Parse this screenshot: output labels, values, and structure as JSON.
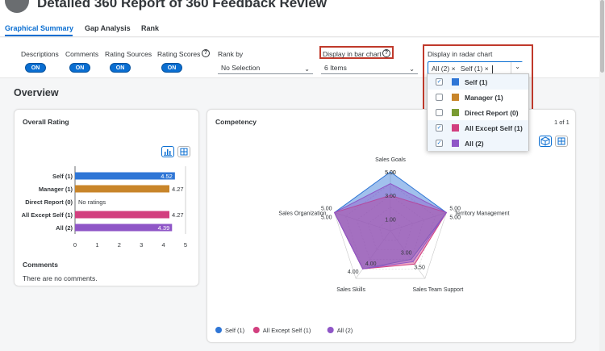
{
  "page": {
    "title": "Detailed 360 Report of 360 Feedback Review"
  },
  "tabs": [
    {
      "label": "Graphical Summary",
      "active": true
    },
    {
      "label": "Gap Analysis",
      "active": false
    },
    {
      "label": "Rank",
      "active": false
    }
  ],
  "filters": {
    "descriptions": {
      "label": "Descriptions",
      "state": "ON"
    },
    "comments": {
      "label": "Comments",
      "state": "ON"
    },
    "rating_sources": {
      "label": "Rating Sources",
      "state": "ON"
    },
    "rating_scores": {
      "label": "Rating Scores",
      "state": "ON",
      "info": "?"
    },
    "rank_by": {
      "label": "Rank by",
      "value": "No Selection"
    },
    "bar_chart": {
      "label": "Display in bar chart",
      "info": "?",
      "value": "6 Items"
    },
    "radar_chart": {
      "label": "Display in radar chart",
      "tokens": [
        "All (2)",
        "Self (1)"
      ],
      "token_close": "×"
    }
  },
  "radar_dropdown": {
    "items": [
      {
        "label": "Self (1)",
        "checked": true,
        "color": "#2f76d6"
      },
      {
        "label": "Manager (1)",
        "checked": false,
        "color": "#c8852a"
      },
      {
        "label": "Direct Report (0)",
        "checked": false,
        "color": "#7a9b32"
      },
      {
        "label": "All Except Self (1)",
        "checked": true,
        "color": "#d23f7f"
      },
      {
        "label": "All (2)",
        "checked": true,
        "color": "#8f56c7"
      }
    ],
    "check_mark": "✓"
  },
  "overview": {
    "title": "Overview"
  },
  "overall_rating": {
    "title": "Overall Rating",
    "comments_title": "Comments",
    "comments_text": "There are no comments."
  },
  "competency": {
    "title": "Competency",
    "page_indicator": "1 of 1"
  },
  "chart_data": [
    {
      "type": "bar",
      "orientation": "horizontal",
      "categories": [
        "Self (1)",
        "Manager (1)",
        "Direct Report (0)",
        "All Except Self (1)",
        "All (2)"
      ],
      "values": [
        4.52,
        4.27,
        null,
        4.27,
        4.39
      ],
      "value_labels": [
        "4.52",
        "4.27",
        "No ratings",
        "4.27",
        "4.39"
      ],
      "colors": [
        "#2f76d6",
        "#c8852a",
        "#7a9b32",
        "#d23f7f",
        "#8f56c7"
      ],
      "xlim": [
        0,
        5
      ],
      "xticks": [
        "0",
        "1",
        "2",
        "3",
        "4",
        "5"
      ]
    },
    {
      "type": "radar",
      "axes": [
        "Sales Goals",
        "Territory Management",
        "Sales Team Support",
        "Sales Skills",
        "Sales Organization"
      ],
      "range": [
        0,
        5
      ],
      "grid_labels": [
        "1.00",
        "3.00",
        "5.00"
      ],
      "series": [
        {
          "name": "Self (1)",
          "color": "#2f76d6",
          "values": [
            5.0,
            5.0,
            3.0,
            4.0,
            5.0
          ],
          "labels": [
            "5.00",
            "5.00",
            "3.00",
            "4.00",
            "5.00"
          ]
        },
        {
          "name": "All Except Self (1)",
          "color": "#d23f7f",
          "values": [
            3.0,
            5.0,
            3.5,
            4.0,
            5.0
          ],
          "labels": [
            "",
            "5.00",
            "3.50",
            "4.00",
            "5.00"
          ]
        },
        {
          "name": "All (2)",
          "color": "#8f56c7",
          "values": [
            4.0,
            5.0,
            3.25,
            4.0,
            5.0
          ],
          "labels": [
            "",
            "",
            "",
            "",
            ""
          ]
        }
      ],
      "legend": [
        "Self (1)",
        "All Except Self (1)",
        "All (2)"
      ],
      "legend_position": "bottom-left"
    }
  ]
}
